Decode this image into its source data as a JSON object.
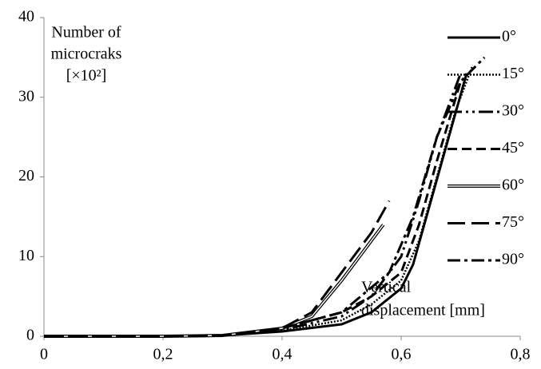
{
  "chart_data": {
    "type": "line",
    "ylabel": [
      "Number of",
      "microcraks",
      "[×10²]"
    ],
    "xlabel": [
      "Vertical",
      "displacement [mm]"
    ],
    "xlim": [
      0,
      0.8
    ],
    "xticks": [
      0,
      {
        "value": 0.2,
        "label": "0,2"
      },
      {
        "value": 0.4,
        "label": "0,4"
      },
      {
        "value": 0.6,
        "label": "0,6"
      },
      {
        "value": 0.8,
        "label": "0,8"
      }
    ],
    "ylim": [
      0,
      40
    ],
    "yticks": [
      0,
      10,
      20,
      30,
      40
    ],
    "legend": "right",
    "series": [
      {
        "name": "0°",
        "color": "#000000",
        "dash": "solid",
        "x": [
          0,
          0.2,
          0.3,
          0.4,
          0.5,
          0.55,
          0.6,
          0.62,
          0.65,
          0.68,
          0.71
        ],
        "values": [
          0,
          0,
          0.1,
          0.6,
          1.5,
          3,
          6,
          9,
          17,
          25,
          33
        ]
      },
      {
        "name": "15°",
        "color": "#000000",
        "dash": "dotted",
        "x": [
          0,
          0.2,
          0.3,
          0.4,
          0.5,
          0.55,
          0.6,
          0.63,
          0.66,
          0.69,
          0.72
        ],
        "values": [
          0,
          0,
          0.1,
          0.7,
          2,
          4,
          7,
          12,
          20,
          28,
          34
        ]
      },
      {
        "name": "30°",
        "color": "#000000",
        "dash": "dashdotdot",
        "x": [
          0,
          0.2,
          0.3,
          0.4,
          0.5,
          0.55,
          0.6,
          0.63,
          0.66,
          0.7
        ],
        "values": [
          0,
          0,
          0.1,
          0.8,
          2.5,
          5,
          10,
          17,
          25,
          33
        ]
      },
      {
        "name": "45°",
        "color": "#000000",
        "dash": "dashed",
        "x": [
          0,
          0.2,
          0.3,
          0.4,
          0.5,
          0.55,
          0.6,
          0.63,
          0.66,
          0.7
        ],
        "values": [
          0,
          0,
          0.1,
          1,
          3,
          5,
          8,
          14,
          22,
          32
        ]
      },
      {
        "name": "60°",
        "color": "#000000",
        "dash": "double",
        "x": [
          0,
          0.2,
          0.3,
          0.4,
          0.45,
          0.5,
          0.55,
          0.57
        ],
        "values": [
          0,
          0,
          0.1,
          1,
          2.5,
          7,
          12,
          14
        ]
      },
      {
        "name": "75°",
        "color": "#000000",
        "dash": "longdash",
        "x": [
          0,
          0.2,
          0.3,
          0.4,
          0.45,
          0.5,
          0.55,
          0.58
        ],
        "values": [
          0,
          0,
          0.1,
          1,
          3,
          8,
          13,
          17
        ]
      },
      {
        "name": "90°",
        "color": "#000000",
        "dash": "dashdot",
        "x": [
          0,
          0.2,
          0.3,
          0.4,
          0.5,
          0.58,
          0.62,
          0.66,
          0.7,
          0.74
        ],
        "values": [
          0,
          0,
          0.1,
          1,
          3,
          8,
          15,
          25,
          32,
          35
        ]
      }
    ]
  }
}
